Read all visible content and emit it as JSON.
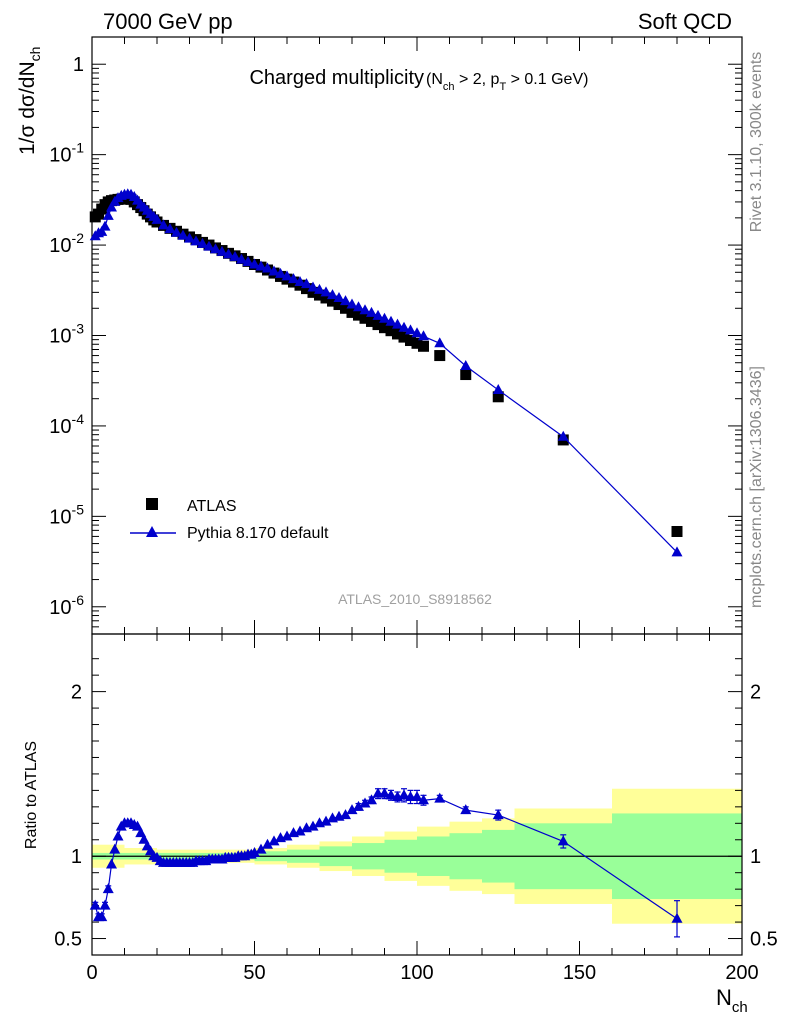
{
  "header": {
    "left": "7000 GeV pp",
    "right": "Soft QCD"
  },
  "side_labels": {
    "rivet": "Rivet 3.1.10,  300k events",
    "mcplots": "mcplots.cern.ch [arXiv:1306.3436]"
  },
  "chart_data": [
    {
      "type": "scatter",
      "title": "Charged multiplicity",
      "title_sub": "(N_ch > 2, p_T > 0.1 GeV)",
      "ylabel": "1/σ dσ/dN_ch",
      "xlim": [
        0,
        200
      ],
      "ylim": [
        5e-07,
        2
      ],
      "yscale": "log",
      "ytick_labels": [
        "1",
        "10^-1",
        "10^-2",
        "10^-3",
        "10^-4",
        "10^-5",
        "10^-6"
      ],
      "watermark": "ATLAS_2010_S8918562",
      "legend": {
        "position": "bottom-left",
        "entries": [
          "ATLAS",
          "Pythia 8.170 default"
        ]
      },
      "series": [
        {
          "name": "ATLAS",
          "color": "#000000",
          "marker": "square",
          "x": [
            1,
            2,
            3,
            4,
            5,
            6,
            7,
            8,
            9,
            10,
            11,
            12,
            13,
            14,
            15,
            16,
            17,
            18,
            19,
            20,
            22,
            24,
            26,
            28,
            30,
            32,
            34,
            36,
            38,
            40,
            42,
            44,
            46,
            48,
            50,
            52,
            54,
            56,
            58,
            60,
            62,
            64,
            66,
            68,
            70,
            72,
            74,
            76,
            78,
            80,
            82,
            84,
            86,
            88,
            90,
            92,
            94,
            96,
            98,
            100,
            102,
            107,
            115,
            125,
            145,
            180
          ],
          "y": [
            0.0205,
            0.022,
            0.025,
            0.028,
            0.03,
            0.031,
            0.0315,
            0.032,
            0.0322,
            0.0325,
            0.033,
            0.032,
            0.03,
            0.028,
            0.026,
            0.024,
            0.022,
            0.0205,
            0.019,
            0.018,
            0.0165,
            0.0153,
            0.0142,
            0.0132,
            0.0123,
            0.0115,
            0.0107,
            0.01,
            0.0093,
            0.0087,
            0.0081,
            0.0076,
            0.0071,
            0.0066,
            0.0061,
            0.0057,
            0.0053,
            0.0049,
            0.0045,
            0.0042,
            0.0039,
            0.0036,
            0.0033,
            0.003,
            0.0028,
            0.0026,
            0.0024,
            0.0022,
            0.002,
            0.0018,
            0.00168,
            0.00155,
            0.00143,
            0.00132,
            0.00122,
            0.00113,
            0.00104,
            0.00096,
            0.00088,
            0.00082,
            0.00076,
            0.0006,
            0.00037,
            0.00021,
            7e-05,
            6.8e-06
          ]
        },
        {
          "name": "Pythia 8.170 default",
          "color": "#0000cc",
          "marker": "triangle",
          "x": [
            1,
            2,
            3,
            4,
            5,
            6,
            7,
            8,
            9,
            10,
            11,
            12,
            13,
            14,
            15,
            16,
            17,
            18,
            19,
            20,
            22,
            24,
            26,
            28,
            30,
            32,
            34,
            36,
            38,
            40,
            42,
            44,
            46,
            48,
            50,
            52,
            54,
            56,
            58,
            60,
            62,
            64,
            66,
            68,
            70,
            72,
            74,
            76,
            78,
            80,
            82,
            84,
            86,
            88,
            90,
            92,
            94,
            96,
            98,
            100,
            102,
            107,
            115,
            125,
            145,
            180
          ],
          "y": [
            0.0125,
            0.0135,
            0.014,
            0.016,
            0.021,
            0.026,
            0.03,
            0.033,
            0.035,
            0.036,
            0.0365,
            0.036,
            0.034,
            0.031,
            0.028,
            0.026,
            0.024,
            0.022,
            0.0205,
            0.019,
            0.0165,
            0.015,
            0.0137,
            0.0127,
            0.0118,
            0.011,
            0.0103,
            0.0096,
            0.009,
            0.0084,
            0.0079,
            0.0074,
            0.0069,
            0.0065,
            0.0061,
            0.0058,
            0.0055,
            0.0051,
            0.0048,
            0.0045,
            0.0042,
            0.0039,
            0.0037,
            0.0034,
            0.0032,
            0.003,
            0.0028,
            0.0026,
            0.0024,
            0.0022,
            0.00205,
            0.0019,
            0.00178,
            0.00165,
            0.00153,
            0.00142,
            0.00132,
            0.00122,
            0.00114,
            0.00106,
            0.00098,
            0.00082,
            0.00046,
            0.00025,
            7.6e-05,
            4e-06
          ]
        }
      ]
    },
    {
      "type": "scatter",
      "ylabel": "Ratio to ATLAS",
      "xlabel": "N_ch",
      "xlim": [
        0,
        200
      ],
      "ylim": [
        0.4,
        2.35
      ],
      "xticks": [
        0,
        50,
        100,
        150,
        200
      ],
      "yticks": [
        0.5,
        1,
        2
      ],
      "bands": [
        {
          "name": "ATLAS total uncertainty",
          "color": "#ffff99",
          "x_edges": [
            0,
            10,
            20,
            30,
            40,
            50,
            60,
            70,
            80,
            90,
            100,
            110,
            120,
            130,
            160,
            200
          ],
          "half_width": [
            0.07,
            0.05,
            0.04,
            0.04,
            0.04,
            0.05,
            0.07,
            0.09,
            0.12,
            0.15,
            0.18,
            0.21,
            0.23,
            0.29,
            0.41
          ]
        },
        {
          "name": "ATLAS statistical uncertainty",
          "color": "#99ff99",
          "x_edges": [
            0,
            10,
            20,
            30,
            40,
            50,
            60,
            70,
            80,
            90,
            100,
            110,
            120,
            130,
            160,
            200
          ],
          "half_width": [
            0.02,
            0.02,
            0.02,
            0.02,
            0.02,
            0.03,
            0.04,
            0.06,
            0.08,
            0.1,
            0.12,
            0.14,
            0.16,
            0.2,
            0.26
          ]
        }
      ],
      "reference_line": 1,
      "series": [
        {
          "name": "Pythia 8.170 default",
          "color": "#0000cc",
          "marker": "triangle",
          "x": [
            1,
            2,
            3,
            4,
            5,
            6,
            7,
            8,
            9,
            10,
            11,
            12,
            13,
            14,
            15,
            16,
            17,
            18,
            19,
            20,
            21,
            22,
            23,
            24,
            25,
            26,
            27,
            28,
            29,
            30,
            31,
            32,
            33,
            34,
            35,
            36,
            37,
            38,
            39,
            40,
            41,
            42,
            43,
            44,
            45,
            46,
            47,
            48,
            49,
            50,
            52,
            54,
            56,
            58,
            60,
            62,
            64,
            66,
            68,
            70,
            72,
            74,
            76,
            78,
            80,
            82,
            84,
            86,
            88,
            90,
            92,
            94,
            96,
            98,
            100,
            102,
            107,
            115,
            125,
            145,
            180
          ],
          "y": [
            0.7,
            0.63,
            0.63,
            0.7,
            0.8,
            0.95,
            1.04,
            1.12,
            1.18,
            1.2,
            1.2,
            1.2,
            1.19,
            1.18,
            1.14,
            1.1,
            1.06,
            1.03,
            1.0,
            0.99,
            0.97,
            0.96,
            0.96,
            0.96,
            0.96,
            0.96,
            0.96,
            0.96,
            0.96,
            0.96,
            0.96,
            0.97,
            0.97,
            0.97,
            0.97,
            0.98,
            0.98,
            0.98,
            0.98,
            0.98,
            0.99,
            0.99,
            0.99,
            0.99,
            1.0,
            1.0,
            1.0,
            1.01,
            1.01,
            1.02,
            1.04,
            1.07,
            1.09,
            1.11,
            1.12,
            1.14,
            1.15,
            1.17,
            1.18,
            1.2,
            1.21,
            1.23,
            1.24,
            1.25,
            1.28,
            1.3,
            1.32,
            1.34,
            1.38,
            1.38,
            1.37,
            1.36,
            1.37,
            1.36,
            1.36,
            1.34,
            1.35,
            1.28,
            1.25,
            1.09,
            0.62
          ],
          "yerr": [
            0.02,
            0.02,
            0.02,
            0.02,
            0.02,
            0.01,
            0.01,
            0.01,
            0.01,
            0.01,
            0.01,
            0.01,
            0.01,
            0.01,
            0.01,
            0.01,
            0.01,
            0.01,
            0.01,
            0.01,
            0.01,
            0.01,
            0.01,
            0.01,
            0.01,
            0.01,
            0.01,
            0.01,
            0.01,
            0.01,
            0.01,
            0.01,
            0.01,
            0.01,
            0.01,
            0.01,
            0.01,
            0.01,
            0.01,
            0.01,
            0.01,
            0.01,
            0.01,
            0.01,
            0.01,
            0.01,
            0.01,
            0.01,
            0.01,
            0.01,
            0.01,
            0.01,
            0.01,
            0.01,
            0.01,
            0.01,
            0.01,
            0.01,
            0.01,
            0.01,
            0.01,
            0.01,
            0.01,
            0.01,
            0.01,
            0.02,
            0.02,
            0.02,
            0.03,
            0.03,
            0.03,
            0.03,
            0.04,
            0.04,
            0.04,
            0.03,
            0.02,
            0.02,
            0.03,
            0.04,
            0.11
          ]
        }
      ]
    }
  ]
}
